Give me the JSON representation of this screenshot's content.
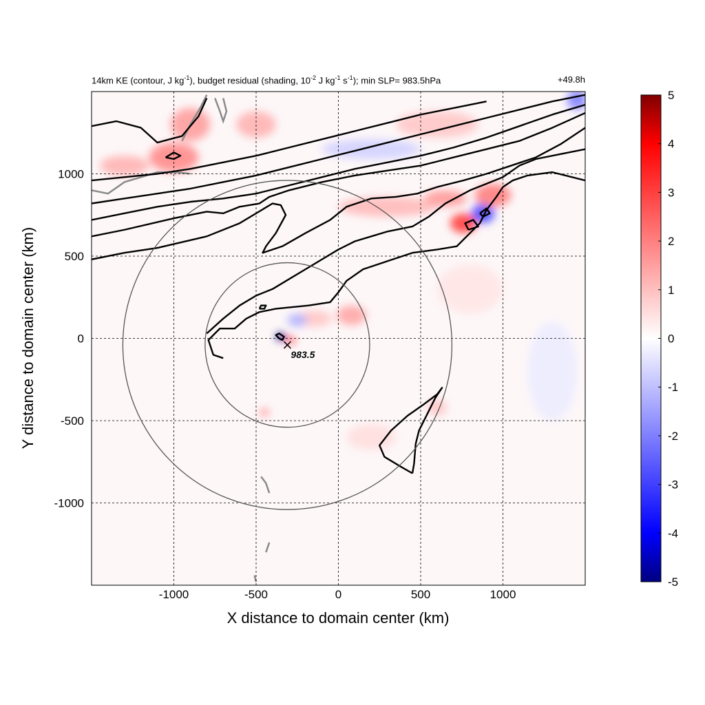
{
  "chart_data": {
    "type": "contour_map",
    "title_parts": {
      "a": "14km KE (contour, J kg",
      "a_sup": "-1",
      "b": "), budget residual (shading, 10",
      "b_sup": "-2",
      "c": " J kg",
      "c_sup": "-1",
      "d": " s",
      "d_sup": "-1",
      "e": "); min SLP= 983.5hPa"
    },
    "time_label": "+49.8h",
    "xlabel": "X distance to domain center (km)",
    "ylabel": "Y distance to domain center (km)",
    "xlim": [
      -1500,
      1500
    ],
    "ylim": [
      -1500,
      1500
    ],
    "xticks": [
      -1000,
      -500,
      0,
      500,
      1000
    ],
    "yticks": [
      -1000,
      -500,
      0,
      500,
      1000
    ],
    "grid": "dashed",
    "colorbar": {
      "min": -5,
      "max": 5,
      "ticks": [
        5,
        4,
        3,
        2,
        1,
        0,
        -1,
        -2,
        -3,
        -4,
        -5
      ],
      "colors": [
        "#000080",
        "#0000ff",
        "#ffffff",
        "#ff0000",
        "#800000"
      ]
    },
    "storm_center": {
      "x": -310,
      "y": -40,
      "label": "983.5"
    },
    "range_circles_km": [
      500,
      1000
    ],
    "contours": [
      [
        [
          -1500,
          480
        ],
        [
          -1300,
          520
        ],
        [
          -1100,
          550
        ],
        [
          -800,
          620
        ],
        [
          -600,
          700
        ],
        [
          -500,
          760
        ],
        [
          -400,
          820
        ],
        [
          -350,
          810
        ],
        [
          -320,
          750
        ],
        [
          -380,
          640
        ],
        [
          -440,
          560
        ],
        [
          -460,
          520
        ],
        [
          -340,
          560
        ],
        [
          -200,
          640
        ],
        [
          -50,
          720
        ],
        [
          50,
          800
        ],
        [
          200,
          850
        ],
        [
          350,
          860
        ],
        [
          480,
          880
        ],
        [
          600,
          920
        ],
        [
          760,
          960
        ],
        [
          900,
          1000
        ],
        [
          1050,
          1050
        ],
        [
          1200,
          1100
        ],
        [
          1350,
          1180
        ],
        [
          1500,
          1280
        ]
      ],
      [
        [
          -1500,
          620
        ],
        [
          -1300,
          660
        ],
        [
          -1000,
          730
        ],
        [
          -800,
          770
        ],
        [
          -700,
          760
        ],
        [
          -600,
          800
        ],
        [
          -480,
          820
        ],
        [
          -420,
          860
        ],
        [
          -300,
          900
        ],
        [
          -100,
          950
        ],
        [
          100,
          990
        ],
        [
          300,
          1020
        ],
        [
          500,
          1050
        ],
        [
          700,
          1100
        ],
        [
          900,
          1150
        ],
        [
          1100,
          1200
        ],
        [
          1300,
          1280
        ],
        [
          1500,
          1370
        ]
      ],
      [
        [
          -1500,
          720
        ],
        [
          -1300,
          760
        ],
        [
          -1100,
          800
        ],
        [
          -900,
          830
        ],
        [
          -700,
          850
        ],
        [
          -500,
          880
        ],
        [
          -300,
          930
        ],
        [
          -100,
          980
        ],
        [
          100,
          1030
        ],
        [
          300,
          1070
        ],
        [
          500,
          1110
        ],
        [
          700,
          1160
        ],
        [
          900,
          1220
        ],
        [
          1100,
          1290
        ],
        [
          1300,
          1360
        ],
        [
          1500,
          1420
        ]
      ],
      [
        [
          -1500,
          820
        ],
        [
          -1300,
          850
        ],
        [
          -1100,
          880
        ],
        [
          -900,
          910
        ],
        [
          -700,
          950
        ],
        [
          -500,
          990
        ],
        [
          -300,
          1040
        ],
        [
          -100,
          1090
        ],
        [
          100,
          1140
        ],
        [
          300,
          1190
        ],
        [
          500,
          1240
        ],
        [
          700,
          1290
        ],
        [
          900,
          1340
        ],
        [
          1100,
          1390
        ],
        [
          1300,
          1440
        ],
        [
          1500,
          1480
        ]
      ],
      [
        [
          -1500,
          960
        ],
        [
          -1300,
          980
        ],
        [
          -1100,
          1000
        ],
        [
          -900,
          1030
        ],
        [
          -700,
          1070
        ],
        [
          -500,
          1110
        ],
        [
          -300,
          1160
        ],
        [
          -100,
          1210
        ],
        [
          100,
          1260
        ],
        [
          300,
          1310
        ],
        [
          500,
          1360
        ],
        [
          700,
          1400
        ],
        [
          900,
          1440
        ]
      ],
      [
        [
          -1500,
          1290
        ],
        [
          -1350,
          1320
        ],
        [
          -1200,
          1280
        ],
        [
          -1100,
          1190
        ],
        [
          -950,
          1230
        ],
        [
          -850,
          1350
        ],
        [
          -800,
          1460
        ]
      ],
      [
        [
          -800,
          30
        ],
        [
          -700,
          120
        ],
        [
          -600,
          200
        ],
        [
          -500,
          260
        ],
        [
          -400,
          300
        ],
        [
          -300,
          360
        ],
        [
          -200,
          420
        ],
        [
          -100,
          480
        ],
        [
          0,
          540
        ],
        [
          100,
          590
        ],
        [
          200,
          620
        ],
        [
          300,
          650
        ],
        [
          450,
          680
        ],
        [
          550,
          740
        ],
        [
          650,
          820
        ],
        [
          800,
          900
        ],
        [
          900,
          940
        ],
        [
          1000,
          980
        ],
        [
          1100,
          1050
        ],
        [
          1200,
          1090
        ],
        [
          1350,
          1120
        ],
        [
          1500,
          1150
        ]
      ],
      [
        [
          -700,
          -120
        ],
        [
          -760,
          -100
        ],
        [
          -790,
          -10
        ],
        [
          -720,
          60
        ],
        [
          -630,
          60
        ],
        [
          -560,
          120
        ],
        [
          -480,
          160
        ],
        [
          -380,
          180
        ],
        [
          -280,
          190
        ],
        [
          -180,
          200
        ],
        [
          -50,
          220
        ],
        [
          0,
          280
        ],
        [
          50,
          350
        ],
        [
          150,
          420
        ],
        [
          300,
          470
        ],
        [
          450,
          520
        ],
        [
          600,
          540
        ],
        [
          720,
          560
        ],
        [
          780,
          620
        ],
        [
          860,
          700
        ],
        [
          900,
          780
        ],
        [
          960,
          860
        ],
        [
          1000,
          920
        ],
        [
          1060,
          960
        ],
        [
          1150,
          990
        ],
        [
          1300,
          1010
        ],
        [
          1500,
          960
        ]
      ],
      [
        [
          450,
          -820
        ],
        [
          380,
          -780
        ],
        [
          280,
          -720
        ],
        [
          250,
          -650
        ],
        [
          320,
          -560
        ],
        [
          420,
          -470
        ],
        [
          520,
          -400
        ],
        [
          600,
          -340
        ],
        [
          630,
          -300
        ],
        [
          590,
          -360
        ],
        [
          540,
          -460
        ],
        [
          490,
          -560
        ],
        [
          470,
          -640
        ],
        [
          460,
          -760
        ],
        [
          450,
          -820
        ]
      ],
      [
        [
          -360,
          0
        ],
        [
          -380,
          20
        ],
        [
          -360,
          30
        ],
        [
          -330,
          10
        ],
        [
          -340,
          -10
        ],
        [
          -360,
          0
        ]
      ],
      [
        [
          -480,
          180
        ],
        [
          -470,
          200
        ],
        [
          -440,
          200
        ],
        [
          -450,
          180
        ],
        [
          -480,
          180
        ]
      ],
      [
        [
          -1050,
          1100
        ],
        [
          -1000,
          1130
        ],
        [
          -960,
          1110
        ],
        [
          -1000,
          1090
        ],
        [
          -1050,
          1100
        ]
      ],
      [
        [
          790,
          660
        ],
        [
          770,
          700
        ],
        [
          820,
          720
        ],
        [
          850,
          680
        ],
        [
          790,
          660
        ]
      ],
      [
        [
          860,
          760
        ],
        [
          900,
          790
        ],
        [
          920,
          760
        ],
        [
          880,
          740
        ],
        [
          860,
          760
        ]
      ]
    ],
    "shading_blobs": [
      {
        "x": 80,
        "y": 140,
        "rx": 90,
        "ry": 60,
        "value": 1.4
      },
      {
        "x": -150,
        "y": 120,
        "rx": 110,
        "ry": 50,
        "value": 0.9
      },
      {
        "x": 760,
        "y": 700,
        "rx": 80,
        "ry": 60,
        "value": 3.0
      },
      {
        "x": 880,
        "y": 760,
        "rx": 70,
        "ry": 60,
        "value": -2.8
      },
      {
        "x": 940,
        "y": 870,
        "rx": 110,
        "ry": 70,
        "value": 2.0
      },
      {
        "x": 650,
        "y": 850,
        "rx": 130,
        "ry": 50,
        "value": 1.6
      },
      {
        "x": -350,
        "y": 10,
        "rx": 30,
        "ry": 25,
        "value": -5.0
      },
      {
        "x": -290,
        "y": -10,
        "rx": 25,
        "ry": 20,
        "value": 3.5
      },
      {
        "x": -250,
        "y": 110,
        "rx": 60,
        "ry": 40,
        "value": -1.2
      },
      {
        "x": -1000,
        "y": 1100,
        "rx": 150,
        "ry": 90,
        "value": 1.8
      },
      {
        "x": -1300,
        "y": 1050,
        "rx": 150,
        "ry": 60,
        "value": 1.2
      },
      {
        "x": -900,
        "y": 1300,
        "rx": 120,
        "ry": 100,
        "value": 1.5
      },
      {
        "x": -500,
        "y": 1300,
        "rx": 120,
        "ry": 80,
        "value": 1.2
      },
      {
        "x": 200,
        "y": 1150,
        "rx": 300,
        "ry": 60,
        "value": -0.7
      },
      {
        "x": 600,
        "y": 1300,
        "rx": 250,
        "ry": 80,
        "value": 0.9
      },
      {
        "x": 300,
        "y": 800,
        "rx": 300,
        "ry": 60,
        "value": 1.1
      },
      {
        "x": -450,
        "y": -450,
        "rx": 30,
        "ry": 25,
        "value": 1.6
      },
      {
        "x": 600,
        "y": -420,
        "rx": 60,
        "ry": 50,
        "value": 0.9
      },
      {
        "x": 200,
        "y": -600,
        "rx": 150,
        "ry": 80,
        "value": 0.5
      },
      {
        "x": 800,
        "y": 300,
        "rx": 200,
        "ry": 150,
        "value": 0.4
      },
      {
        "x": 1300,
        "y": -200,
        "rx": 150,
        "ry": 300,
        "value": -0.3
      },
      {
        "x": 1450,
        "y": 1450,
        "rx": 60,
        "ry": 60,
        "value": -2.0
      }
    ],
    "coastlines": [
      [
        [
          -1500,
          900
        ],
        [
          -1400,
          880
        ],
        [
          -1300,
          950
        ],
        [
          -1200,
          980
        ],
        [
          -1100,
          1010
        ],
        [
          -980,
          1010
        ],
        [
          -900,
          1000
        ]
      ],
      [
        [
          -950,
          1200
        ],
        [
          -900,
          1300
        ],
        [
          -840,
          1400
        ],
        [
          -800,
          1480
        ]
      ],
      [
        [
          -750,
          1460
        ],
        [
          -720,
          1380
        ],
        [
          -700,
          1320
        ],
        [
          -680,
          1380
        ],
        [
          -700,
          1460
        ]
      ],
      [
        [
          -470,
          -840
        ],
        [
          -440,
          -880
        ],
        [
          -420,
          -940
        ]
      ],
      [
        [
          -420,
          -1240
        ],
        [
          -440,
          -1300
        ]
      ],
      [
        [
          -500,
          -1480
        ],
        [
          -510,
          -1440
        ]
      ]
    ]
  }
}
